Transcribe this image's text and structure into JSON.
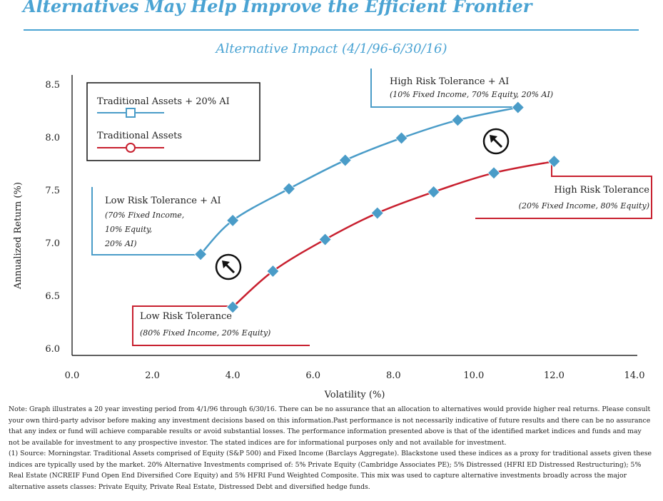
{
  "title": "Alternatives May Help Improve the Efficient Frontier",
  "chart_data": {
    "type": "line",
    "title": "Alternative Impact (4/1/96-6/30/16)",
    "xlabel": "Volatility (%)",
    "ylabel": "Annualized Return (%)",
    "xlim": [
      0,
      14
    ],
    "ylim": [
      6.0,
      8.5
    ],
    "xticks": [
      "0.0",
      "2.0",
      "4.0",
      "6.0",
      "8.0",
      "10.0",
      "12.0",
      "14.0"
    ],
    "yticks": [
      "6.0",
      "6.5",
      "7.0",
      "7.5",
      "8.0",
      "8.5"
    ],
    "grid": false,
    "legend_position": "top-left",
    "series": [
      {
        "name": "Traditional Assets + 20% AI",
        "color": "#4a9cc8",
        "marker": "square",
        "x": [
          3.2,
          4.0,
          5.4,
          6.8,
          8.2,
          9.6,
          11.1
        ],
        "y": [
          6.89,
          7.21,
          7.51,
          7.78,
          7.99,
          8.16,
          8.28
        ]
      },
      {
        "name": "Traditional Assets",
        "color": "#c8202f",
        "marker": "circle",
        "x": [
          4.0,
          5.0,
          6.3,
          7.6,
          9.0,
          10.5,
          12.0
        ],
        "y": [
          6.39,
          6.73,
          7.03,
          7.28,
          7.48,
          7.66,
          7.77
        ]
      }
    ],
    "annotations": [
      {
        "label": "High Risk Tolerance + AI",
        "sublabel": "(10% Fixed Income, 70% Equity, 20% AI)",
        "color": "#4a9cc8"
      },
      {
        "label": "Low Risk Tolerance + AI",
        "sublabel": "(70% Fixed Income,",
        "sublabel2": "10% Equity,",
        "sublabel3": "20% AI)",
        "color": "#4a9cc8"
      },
      {
        "label": "High Risk Tolerance",
        "sublabel": "(20% Fixed Income, 80% Equity)",
        "color": "#c8202f"
      },
      {
        "label": "Low Risk Tolerance",
        "sublabel": "(80% Fixed Income, 20% Equity)",
        "color": "#c8202f"
      }
    ]
  },
  "notes": {
    "footnote": "Note: Graph illustrates a 20 year investing period from 4/1/96 through 6/30/16.  There can be no assurance that an allocation to alternatives would provide higher real returns. Please consult your own third-party advisor before making any investment decisions based on this information.Past performance is not necessarily indicative of future results and there can be no assurance that any index or fund will achieve comparable results or avoid substantial losses. The performance information presented above is  that of the identified market indices and funds and may not be available for investment to any prospective investor.  The stated indices are for informational purposes only and not available for investment.",
    "source": "(1) Source: Morningstar. Traditional Assets comprised of Equity (S&P 500) and Fixed Income (Barclays Aggregate). Blackstone used these indices as a proxy for traditional assets given these indices are typically used by the market. 20% Alternative Investments comprised of: 5% Private Equity (Cambridge Associates PE);  5% Distressed (HFRI ED Distressed Restructuring); 5% Real Estate (NCREIF Fund Open End Diversified Core Equity) and 5% HFRI Fund Weighted Composite. This mix was used to capture alternative investments broadly across the major alternative assets classes: Private Equity, Private Real Estate, Distressed Debt and diversified hedge funds."
  }
}
